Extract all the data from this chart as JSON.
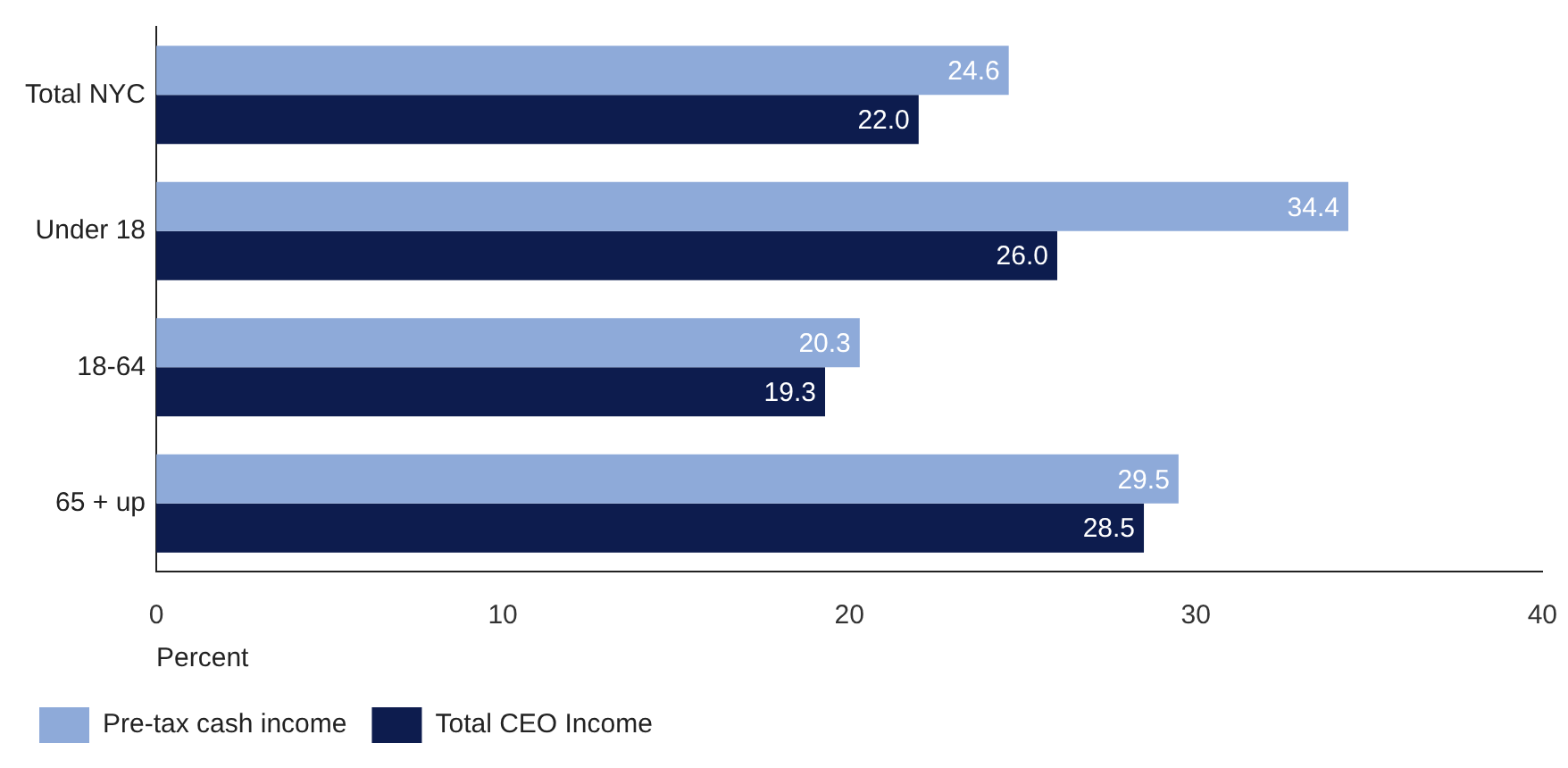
{
  "chart_data": {
    "type": "bar",
    "orientation": "horizontal",
    "categories": [
      "Total NYC",
      "Under 18",
      "18-64",
      "65 + up"
    ],
    "series": [
      {
        "name": "Pre-tax cash income",
        "color": "#8eaad9",
        "values": [
          24.6,
          34.4,
          20.3,
          29.5
        ],
        "value_labels": [
          "24.6",
          "34.4",
          "20.3",
          "29.5"
        ]
      },
      {
        "name": "Total CEO Income",
        "color": "#0d1c4e",
        "values": [
          22.0,
          26.0,
          19.3,
          28.5
        ],
        "value_labels": [
          "22.0",
          "26.0",
          "19.3",
          "28.5"
        ]
      }
    ],
    "xlabel": "Percent",
    "xlim": [
      0,
      40
    ],
    "xticks": [
      0,
      10,
      20,
      30,
      40
    ],
    "grid": false,
    "legend": "bottom left"
  }
}
